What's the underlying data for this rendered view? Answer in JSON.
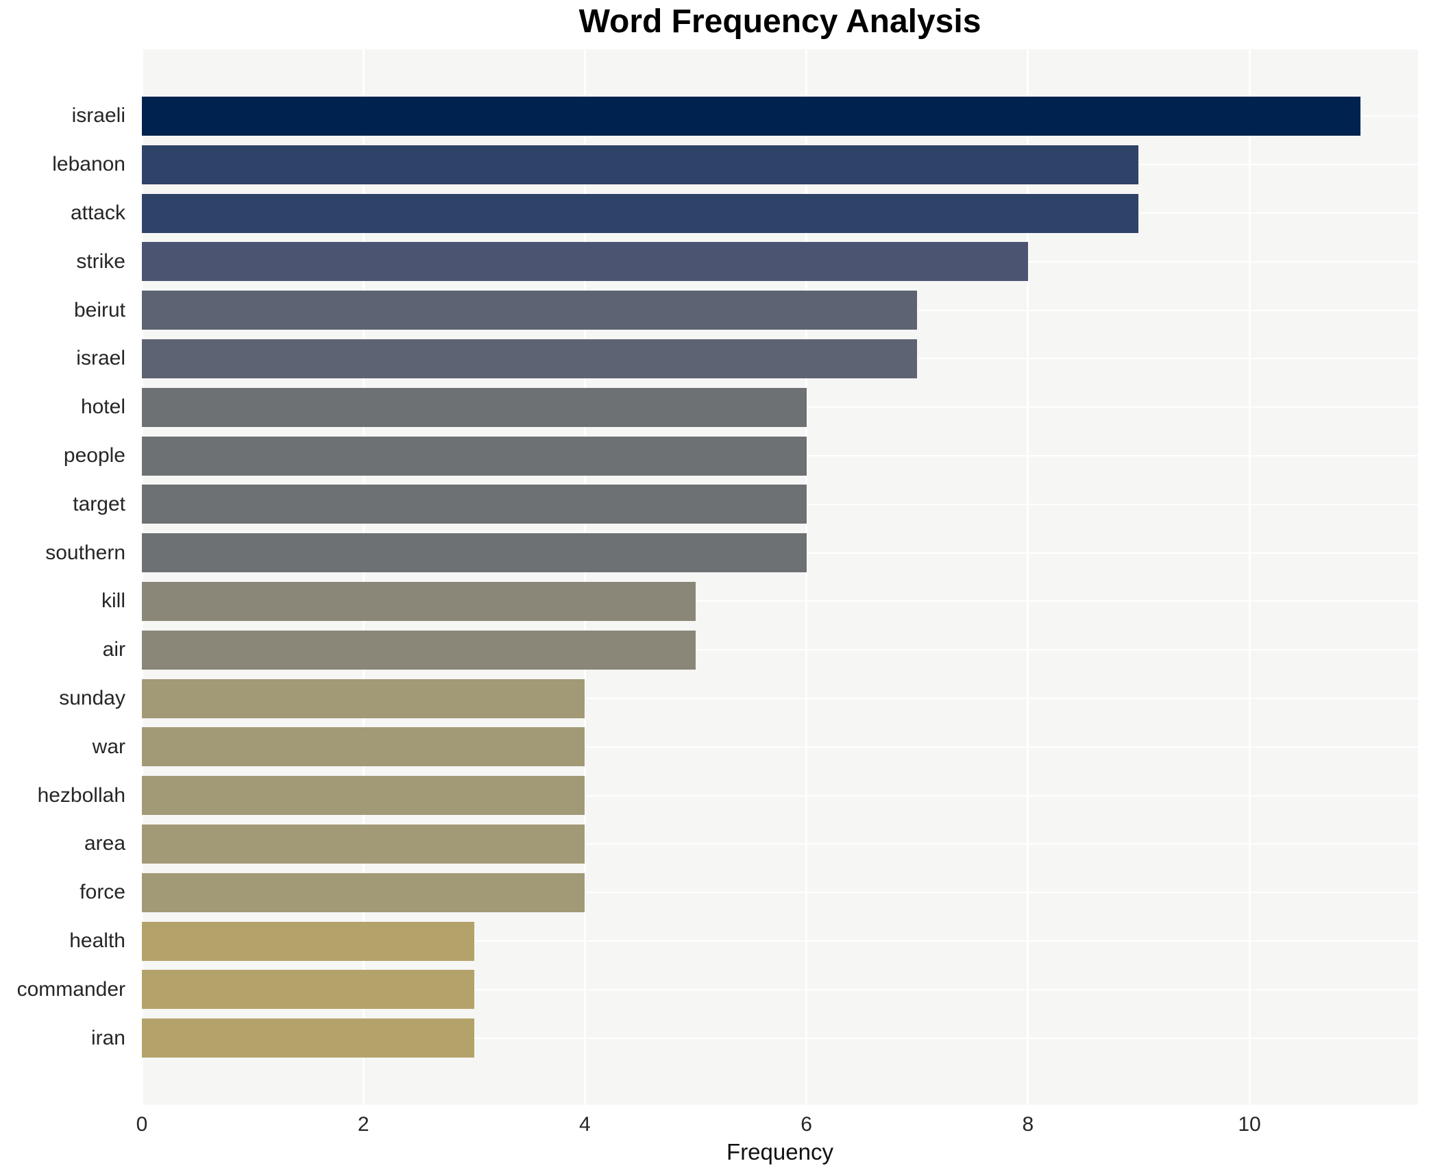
{
  "chart_data": {
    "type": "bar",
    "orientation": "horizontal",
    "title": "Word Frequency Analysis",
    "xlabel": "Frequency",
    "ylabel": "",
    "categories": [
      "israeli",
      "lebanon",
      "attack",
      "strike",
      "beirut",
      "israel",
      "hotel",
      "people",
      "target",
      "southern",
      "kill",
      "air",
      "sunday",
      "war",
      "hezbollah",
      "area",
      "force",
      "health",
      "commander",
      "iran"
    ],
    "values": [
      11,
      9,
      9,
      8,
      7,
      7,
      6,
      6,
      6,
      6,
      5,
      5,
      4,
      4,
      4,
      4,
      4,
      3,
      3,
      3
    ],
    "bar_colors": [
      "#00224e",
      "#2f4268",
      "#2f4268",
      "#4b5471",
      "#5d6372",
      "#5d6372",
      "#6d7173",
      "#6d7173",
      "#6e7173",
      "#6e7173",
      "#8a8779",
      "#8a8779",
      "#a29a76",
      "#a29a76",
      "#a29a76",
      "#a29a76",
      "#a29a76",
      "#b3a269",
      "#b3a269",
      "#b3a269"
    ],
    "xticks": [
      0,
      2,
      4,
      6,
      8,
      10
    ],
    "xlim": [
      0,
      11.52
    ],
    "grid": true,
    "legend": "none",
    "plot_bg": "#f6f6f5",
    "grid_color": "#ffffff"
  }
}
